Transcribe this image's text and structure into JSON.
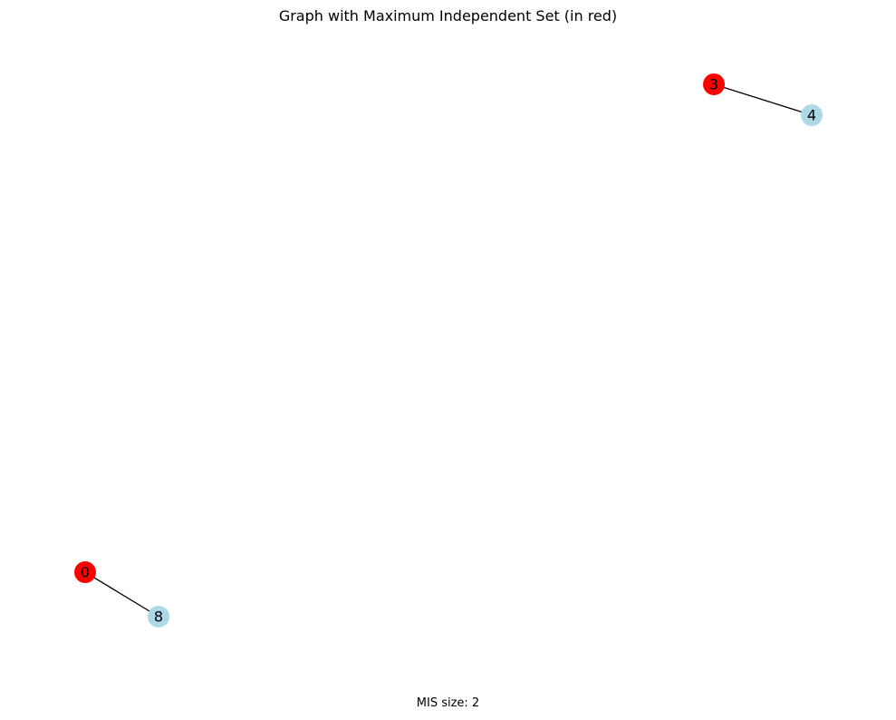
{
  "title": "Graph with Maximum Independent Set (in red)",
  "footer": "MIS size: 2",
  "colors": {
    "mis_node": "#ff0000",
    "other_node": "#add8e6",
    "edge": "#000000"
  },
  "graph": {
    "nodes": [
      {
        "id": "0",
        "in_mis": true
      },
      {
        "id": "8",
        "in_mis": false
      },
      {
        "id": "3",
        "in_mis": true
      },
      {
        "id": "4",
        "in_mis": false
      }
    ],
    "edges": [
      {
        "source": "0",
        "target": "8"
      },
      {
        "source": "3",
        "target": "4"
      }
    ]
  }
}
